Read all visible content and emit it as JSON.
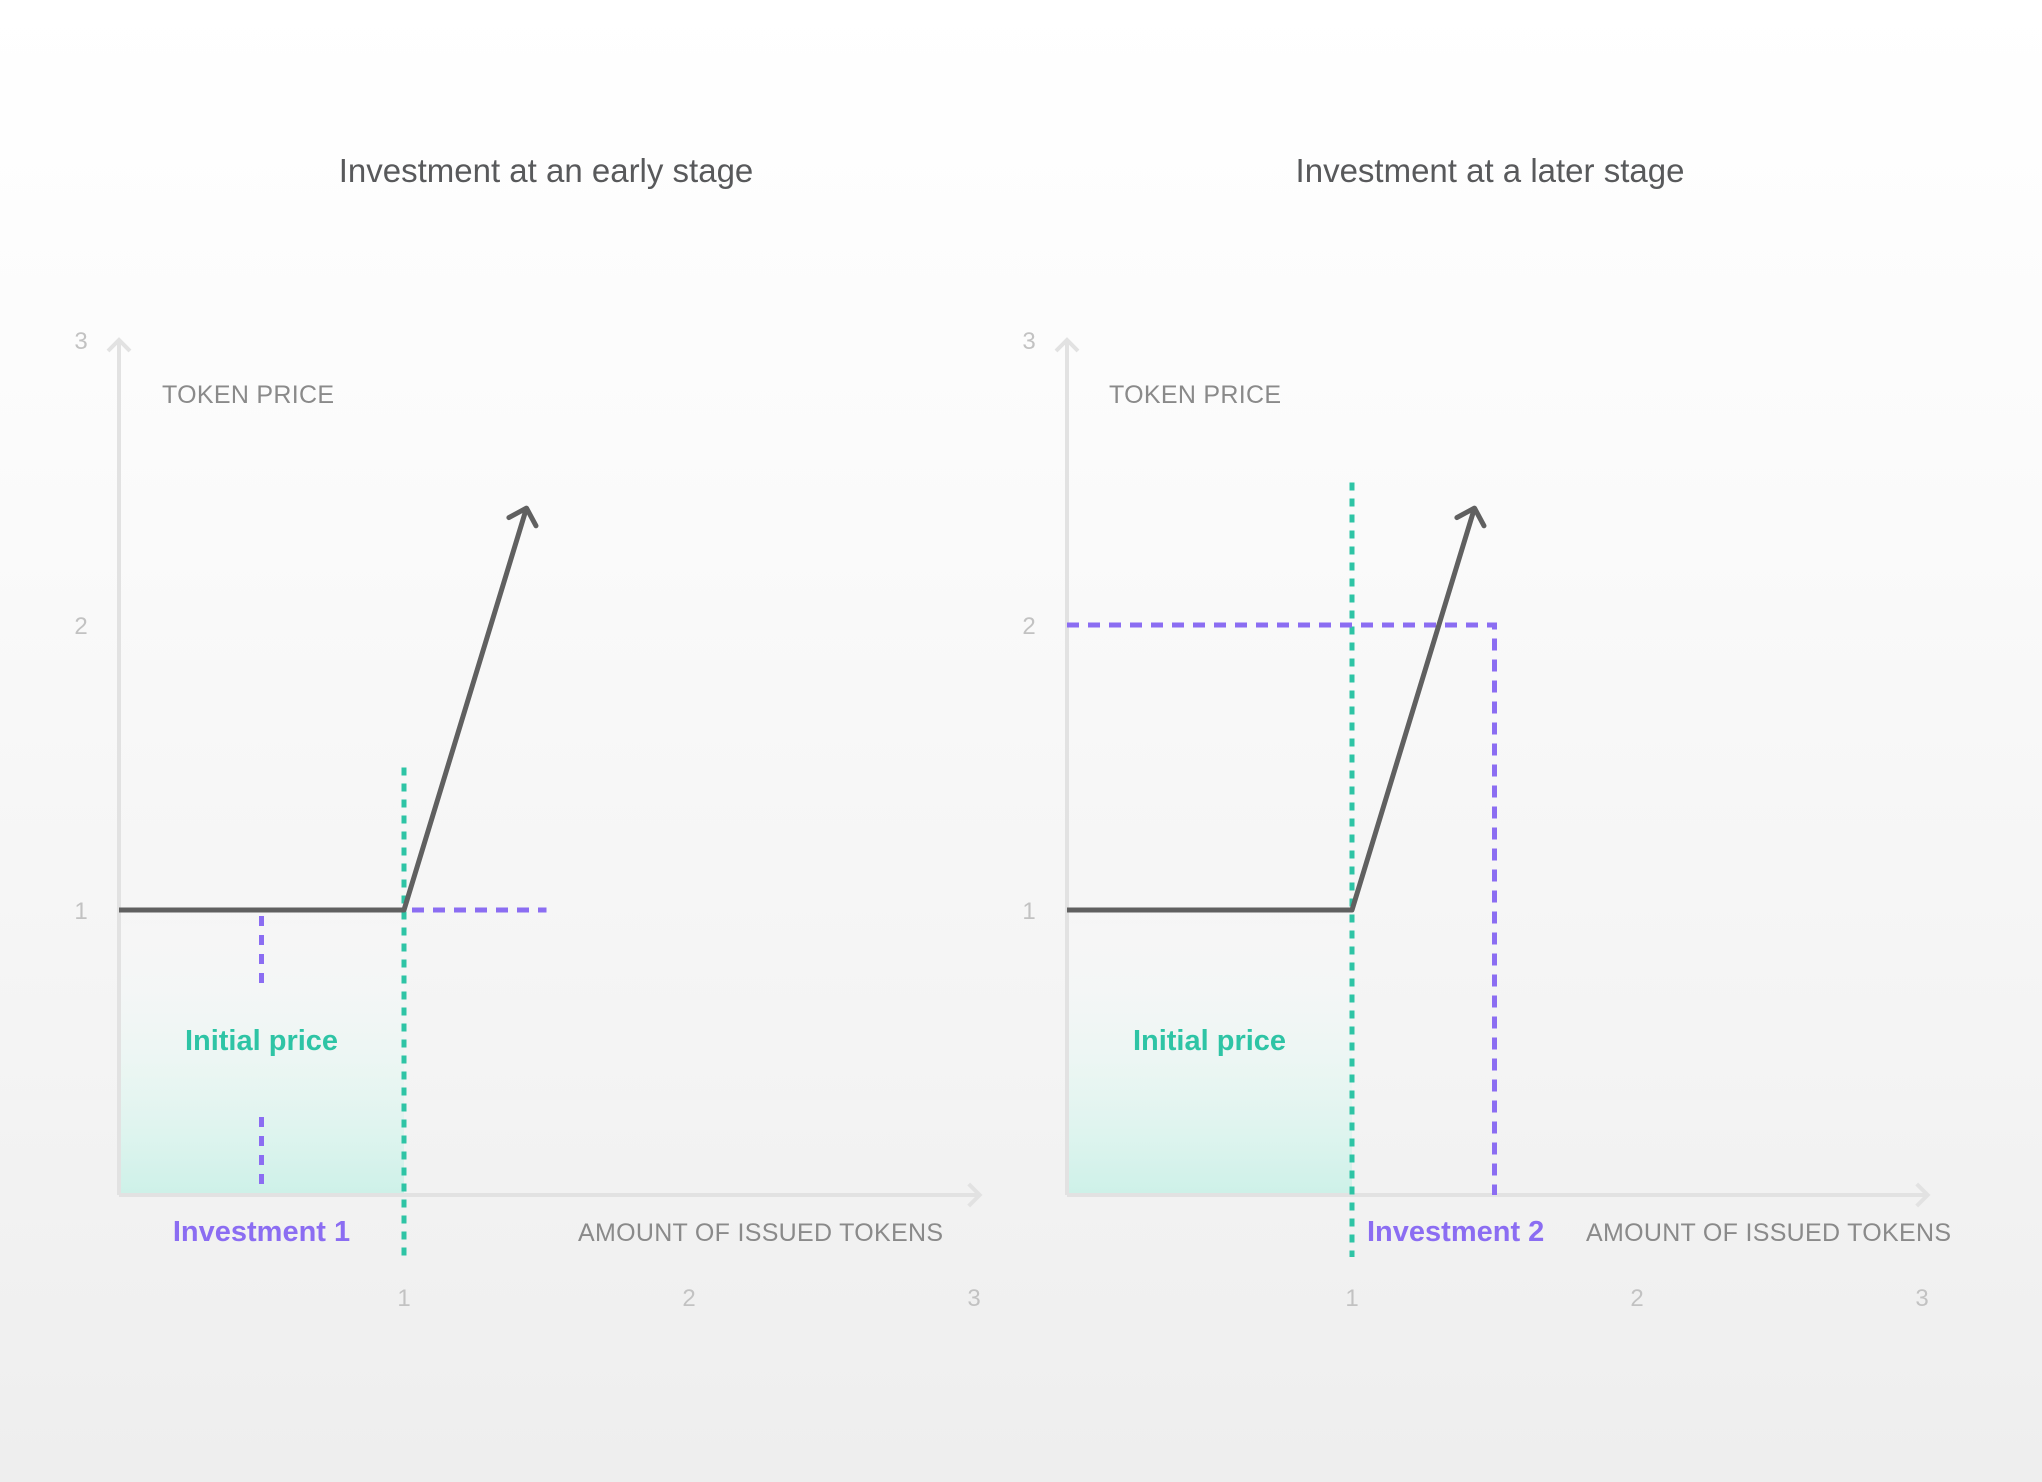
{
  "colors": {
    "curve": "#606060",
    "axis": "#e2e2e2",
    "tick_text": "#c2c2c2",
    "axis_label": "#8a8a8a",
    "teal": "#2ec4a5",
    "teal_fill": "#cdf1e8",
    "purple": "#8b6df2",
    "title": "#58595b"
  },
  "chart_data": [
    {
      "type": "line",
      "title": "Investment at an early stage",
      "xlabel": "AMOUNT OF ISSUED TOKENS",
      "ylabel": "TOKEN PRICE",
      "x_ticks": [
        "1",
        "2",
        "3"
      ],
      "y_ticks": [
        "1",
        "2",
        "3"
      ],
      "xlim": [
        0,
        3
      ],
      "ylim": [
        0,
        3
      ],
      "series": [
        {
          "x": [
            0,
            1,
            1.43
          ],
          "y": [
            1,
            1,
            2.41
          ]
        }
      ],
      "shaded_region": {
        "label": "Initial price",
        "x": [
          0,
          1
        ],
        "y": [
          0,
          1
        ]
      },
      "markers": [
        {
          "label": "Investment 1",
          "x": 0.5
        }
      ],
      "teal_line_x": 1,
      "teal_line_y_top": 1.5,
      "purple_guide_y": 1,
      "purple_guide_x_end": 1.5
    },
    {
      "type": "line",
      "title": "Investment at a later stage",
      "xlabel": "AMOUNT OF ISSUED TOKENS",
      "ylabel": "TOKEN PRICE",
      "x_ticks": [
        "1",
        "2",
        "3"
      ],
      "y_ticks": [
        "1",
        "2",
        "3"
      ],
      "xlim": [
        0,
        3
      ],
      "ylim": [
        0,
        3
      ],
      "series": [
        {
          "x": [
            0,
            1,
            1.43
          ],
          "y": [
            1,
            1,
            2.41
          ]
        }
      ],
      "shaded_region": {
        "label": "Initial price",
        "x": [
          0,
          1
        ],
        "y": [
          0,
          1
        ]
      },
      "markers": [
        {
          "label": "Investment 2",
          "x": 1.5
        }
      ],
      "teal_line_x": 1,
      "teal_line_y_top": 2.5,
      "purple_guide_y": 2,
      "purple_guide_x_end": 1.5
    }
  ]
}
